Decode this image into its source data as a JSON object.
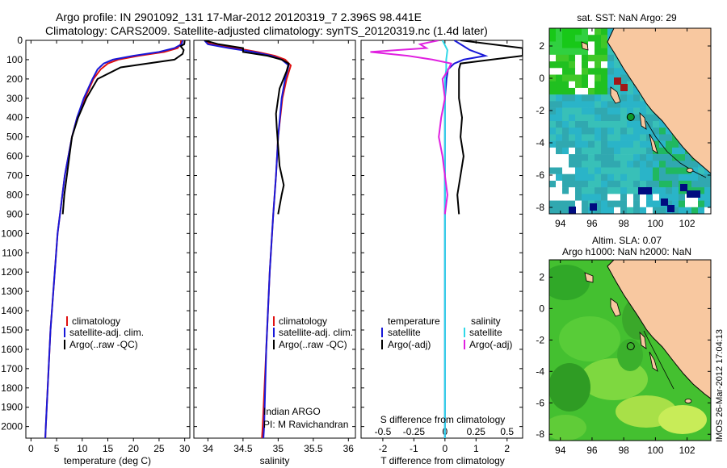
{
  "header": {
    "line1": "Argo profile: IN 2901092_131 17-Mar-2012 20120319_7 2.396S 98.441E",
    "line2": "Climatology: CARS2009. Satellite-adjusted climatology: synTS_20120319.nc (1.4d later)"
  },
  "footer_stamp": "IMOS 26-Mar-2012 17:04:13",
  "colors": {
    "climatology": "#e01010",
    "satellite": "#1818d8",
    "argo": "#000000",
    "sal_satellite": "#30d8e8",
    "sal_argo": "#e020e0",
    "land": "#f8c8a0"
  },
  "chart_data": [
    {
      "type": "line",
      "name": "temperature",
      "xlabel": "temperature (deg C)",
      "ylabel": "depth",
      "xlim": [
        -1,
        31
      ],
      "ylim": [
        2060,
        0
      ],
      "xticks": [
        0,
        5,
        10,
        15,
        20,
        25,
        30
      ],
      "xticklabels": [
        "0",
        "5",
        "10",
        "15",
        "20",
        "25",
        "30"
      ],
      "yticks": [
        0,
        100,
        200,
        300,
        400,
        500,
        600,
        700,
        800,
        900,
        1000,
        1100,
        1200,
        1300,
        1400,
        1500,
        1600,
        1700,
        1800,
        1900,
        2000
      ],
      "legend": [
        "climatology",
        "satellite-adj. clim.",
        "Argo(..raw -QC)"
      ],
      "series": [
        {
          "name": "climatology",
          "color": "#e01010",
          "depth": [
            0,
            20,
            40,
            60,
            80,
            100,
            120,
            150,
            200,
            300,
            400,
            500,
            700,
            1000,
            1500,
            2000,
            2060
          ],
          "values": [
            29.3,
            29.2,
            28.6,
            26,
            21,
            17,
            15,
            13.6,
            12.2,
            10.5,
            9,
            8,
            6.6,
            5.2,
            3.8,
            2.9,
            2.8
          ]
        },
        {
          "name": "satellite-adj. clim.",
          "color": "#1818d8",
          "depth": [
            0,
            20,
            40,
            60,
            80,
            100,
            120,
            150,
            200,
            300,
            400,
            500,
            700,
            1000,
            1500,
            2000,
            2060
          ],
          "values": [
            29.6,
            29.4,
            28,
            25,
            20,
            16,
            14.2,
            13,
            12,
            10.3,
            9,
            8,
            6.6,
            5.2,
            3.8,
            2.9,
            2.8
          ]
        },
        {
          "name": "Argo(..raw -QC)",
          "color": "#000000",
          "depth": [
            0,
            20,
            30,
            50,
            70,
            100,
            140,
            200,
            300,
            400,
            500,
            600,
            700,
            800,
            900
          ],
          "values": [
            30,
            29.9,
            29.2,
            29.8,
            29.6,
            28,
            17.5,
            13,
            10.8,
            9.2,
            8,
            7.5,
            7,
            6.5,
            6.2
          ]
        }
      ]
    },
    {
      "type": "line",
      "name": "salinity",
      "xlabel": "salinity",
      "ylabel": "depth",
      "xlim": [
        33.8,
        36.1
      ],
      "ylim": [
        2060,
        0
      ],
      "xticks": [
        34,
        34.5,
        35,
        35.5,
        36
      ],
      "xticklabels": [
        "34",
        "34.5",
        "35",
        "35.5",
        "36"
      ],
      "legend": [
        "climatology",
        "satellite-adj. clim.",
        "Argo(..raw -QC)"
      ],
      "annotation": [
        "Indian ARGO",
        "PI: M Ravichandran"
      ],
      "series": [
        {
          "name": "climatology",
          "color": "#e01010",
          "depth": [
            0,
            20,
            40,
            60,
            80,
            100,
            130,
            200,
            300,
            500,
            700,
            900,
            1200,
            1600,
            2000,
            2060
          ],
          "values": [
            33.95,
            34.05,
            34.4,
            34.7,
            34.95,
            35.1,
            35.18,
            35.12,
            35.06,
            35.0,
            34.97,
            34.93,
            34.88,
            34.83,
            34.78,
            34.77
          ]
        },
        {
          "name": "satellite-adj. clim.",
          "color": "#1818d8",
          "depth": [
            0,
            20,
            40,
            60,
            80,
            100,
            130,
            200,
            300,
            500,
            700,
            900,
            1200,
            1600,
            2000,
            2060
          ],
          "values": [
            33.95,
            34.0,
            34.3,
            34.65,
            34.9,
            35.05,
            35.15,
            35.1,
            35.05,
            35.0,
            34.97,
            34.93,
            34.88,
            34.83,
            34.8,
            34.79
          ]
        },
        {
          "name": "Argo(..raw -QC)",
          "color": "#000000",
          "depth": [
            0,
            20,
            40,
            60,
            80,
            100,
            120,
            160,
            250,
            380,
            450,
            550,
            650,
            700,
            750,
            800,
            900
          ],
          "values": [
            33.95,
            34.15,
            34.5,
            34.5,
            34.85,
            35.05,
            35.15,
            35.12,
            35.02,
            34.97,
            34.98,
            35.0,
            35.02,
            35.05,
            35.08,
            35.05,
            35.0
          ]
        }
      ]
    },
    {
      "type": "line",
      "name": "difference",
      "xlabel": "T difference from climatology",
      "top_xlabel": "S difference from climatology",
      "ylabel": "depth",
      "xlim": [
        -2.7,
        2.5
      ],
      "ylim": [
        2060,
        0
      ],
      "xticks": [
        -2,
        -1,
        0,
        1,
        2
      ],
      "xticklabels": [
        "-2",
        "-1",
        "0",
        "1",
        "2"
      ],
      "top_xticks": [
        -0.5,
        -0.25,
        0,
        0.25,
        0.5
      ],
      "top_xticklabels": [
        "-0.5",
        "-0.25",
        "0",
        "0.25",
        "0.5"
      ],
      "legend": {
        "temperature_title": "temperature",
        "salinity_title": "salinity",
        "items": [
          "satellite",
          "Argo(-adj)",
          "satellite",
          "Argo(-adj)"
        ]
      },
      "series": [
        {
          "name": "temperature satellite",
          "color": "#1818d8",
          "depth": [
            0,
            50,
            80,
            100,
            120,
            150,
            200,
            300,
            500,
            800,
            1000,
            1500,
            2000,
            2060
          ],
          "values": [
            0.3,
            0.8,
            1.3,
            0.6,
            0.3,
            0.1,
            0.05,
            0,
            0,
            0,
            0,
            0,
            0,
            0
          ]
        },
        {
          "name": "temperature Argo(-adj)",
          "color": "#000000",
          "depth": [
            0,
            40,
            60,
            80,
            100,
            120,
            150,
            200,
            300,
            400,
            500,
            600,
            700,
            800,
            900
          ],
          "values": [
            0.5,
            2.5,
            2.5,
            2.5,
            1.5,
            0.5,
            0.45,
            0.45,
            0.45,
            0.55,
            0.5,
            0.6,
            0.5,
            0.4,
            0.45
          ]
        },
        {
          "name": "salinity satellite",
          "color": "#30d8e8",
          "depth": [
            0,
            50,
            100,
            150,
            200,
            500,
            1000,
            1500,
            2000,
            2060
          ],
          "values": [
            -0.02,
            0.02,
            0.01,
            0.01,
            0,
            0,
            0,
            0,
            0,
            0
          ]
        },
        {
          "name": "salinity Argo(-adj)",
          "color": "#e020e0",
          "depth": [
            0,
            20,
            40,
            60,
            80,
            100,
            120,
            160,
            200,
            300,
            400,
            500,
            600,
            700,
            800,
            900
          ],
          "values": [
            -0.05,
            -0.2,
            -0.15,
            -0.6,
            -0.3,
            -0.1,
            0.05,
            0.02,
            -0.02,
            0,
            -0.03,
            -0.05,
            -0.02,
            0,
            0.02,
            0
          ]
        }
      ]
    },
    {
      "type": "heatmap",
      "name": "sst map",
      "title": "sat. SST: NaN Argo: 29",
      "xlim": [
        93.3,
        103.5
      ],
      "ylim": [
        -8.4,
        3.1
      ],
      "xticks": [
        94,
        96,
        98,
        100,
        102
      ],
      "yticks": [
        2,
        0,
        -2,
        -4,
        -6,
        -8
      ],
      "argo_point": {
        "lon": 98.44,
        "lat": -2.4
      }
    },
    {
      "type": "heatmap",
      "name": "sla map",
      "title_line1": "Altim. SLA: 0.07",
      "title_line2": "Argo h1000: NaN h2000: NaN",
      "xlim": [
        93.3,
        103.5
      ],
      "ylim": [
        -8.4,
        3.1
      ],
      "xticks": [
        94,
        96,
        98,
        100,
        102
      ],
      "yticks": [
        2,
        0,
        -2,
        -4,
        -6,
        -8
      ],
      "argo_point": {
        "lon": 98.44,
        "lat": -2.4
      }
    }
  ]
}
